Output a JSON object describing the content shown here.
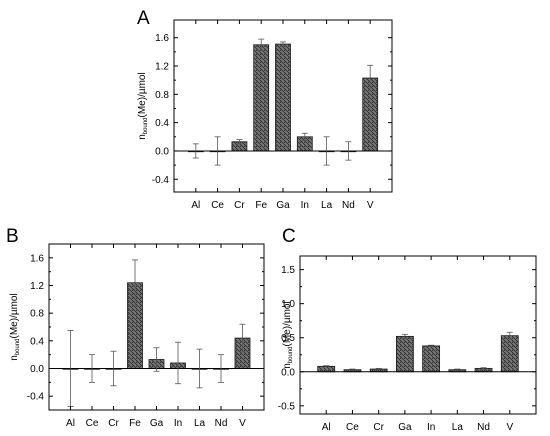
{
  "panels": [
    "A",
    "B",
    "C"
  ],
  "ylabel": {
    "main": "n",
    "sub": "bound",
    "rest": "(Me)/µmol"
  },
  "chart_data": [
    {
      "type": "bar",
      "panel": "A",
      "categories": [
        "Al",
        "Ce",
        "Cr",
        "Fe",
        "Ga",
        "In",
        "La",
        "Nd",
        "V"
      ],
      "values": [
        0.0,
        0.0,
        0.13,
        1.5,
        1.51,
        0.2,
        0.0,
        0.0,
        1.03
      ],
      "errors": [
        0.1,
        0.2,
        0.03,
        0.08,
        0.03,
        0.05,
        0.2,
        0.13,
        0.18
      ],
      "ylim": [
        -0.58,
        1.85
      ],
      "yticks": [
        -0.4,
        0.0,
        0.4,
        0.8,
        1.2,
        1.6
      ],
      "ytick_labels": [
        "-0.4",
        "0.0",
        "0.4",
        "0.8",
        "1.2",
        "1.6"
      ],
      "ylabel": "n_bound(Me)/µmol",
      "grid": false
    },
    {
      "type": "bar",
      "panel": "B",
      "categories": [
        "Al",
        "Ce",
        "Cr",
        "Fe",
        "Ga",
        "In",
        "La",
        "Nd",
        "V"
      ],
      "values": [
        0.0,
        0.0,
        0.0,
        1.24,
        0.13,
        0.08,
        0.0,
        0.0,
        0.44
      ],
      "errors": [
        0.55,
        0.2,
        0.25,
        0.33,
        0.17,
        0.3,
        0.28,
        0.2,
        0.2
      ],
      "ylim": [
        -0.6,
        1.8
      ],
      "yticks": [
        -0.4,
        0.0,
        0.4,
        0.8,
        1.2,
        1.6
      ],
      "ytick_labels": [
        "-0.4",
        "0.0",
        "0.4",
        "0.8",
        "1.2",
        "1.6"
      ],
      "ylabel": "n_bound(Me)/µmol",
      "grid": false
    },
    {
      "type": "bar",
      "panel": "C",
      "categories": [
        "Al",
        "Ce",
        "Cr",
        "Ga",
        "In",
        "La",
        "Nd",
        "V"
      ],
      "values": [
        0.08,
        0.03,
        0.04,
        0.52,
        0.38,
        0.03,
        0.05,
        0.53
      ],
      "errors": [
        0.01,
        0.01,
        0.01,
        0.03,
        0.01,
        0.01,
        0.01,
        0.05
      ],
      "ylim": [
        -0.62,
        1.7
      ],
      "yticks": [
        -0.5,
        0.0,
        0.5,
        1.0,
        1.5
      ],
      "ytick_labels": [
        "-0.5",
        "0.0",
        "0.5",
        "1.0",
        "1.5"
      ],
      "ylabel": "n_bound(Me)/µmol",
      "grid": false
    }
  ]
}
